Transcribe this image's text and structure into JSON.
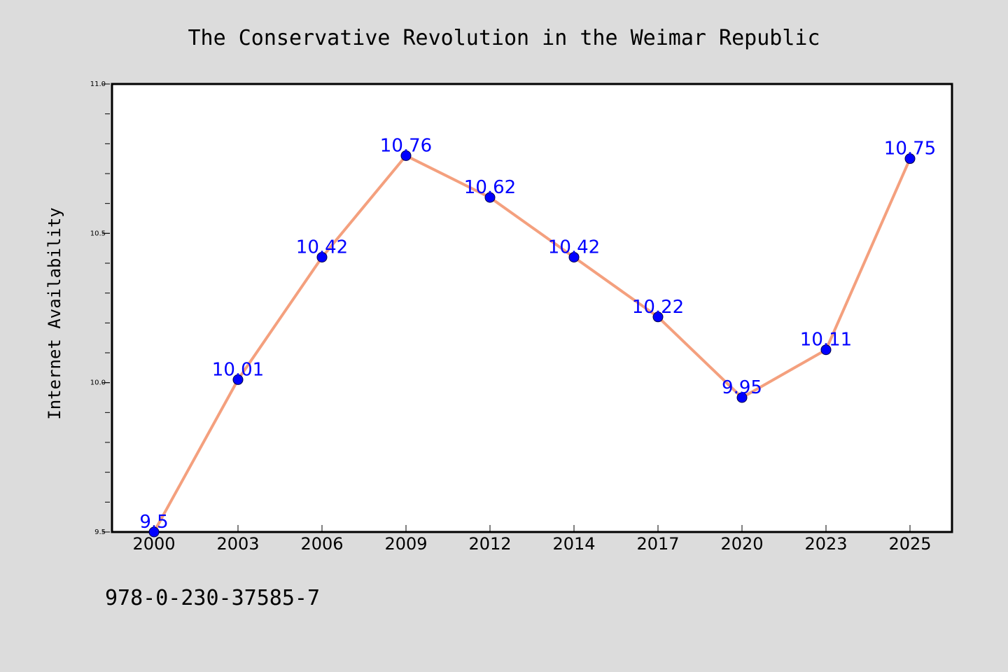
{
  "chart_data": {
    "type": "line",
    "title": "The Conservative Revolution in the Weimar Republic",
    "xlabel": "",
    "ylabel": "Internet Availability",
    "categories": [
      "2000",
      "2003",
      "2006",
      "2009",
      "2012",
      "2014",
      "2017",
      "2020",
      "2023",
      "2025"
    ],
    "series": [
      {
        "values": [
          9.5,
          10.01,
          10.42,
          10.76,
          10.62,
          10.42,
          10.22,
          9.95,
          10.11,
          10.75
        ],
        "labels": [
          "9.5",
          "10.01",
          "10.42",
          "10.76",
          "10.62",
          "10.42",
          "10.22",
          "9.95",
          "10.11",
          "10.75"
        ]
      }
    ],
    "ylim": [
      9.5,
      11.0
    ],
    "yticks": [
      "9.5",
      "10.0",
      "10.5",
      "11.0"
    ],
    "grid": false,
    "line_color": "#f4a07e",
    "marker_color": "#0000ff",
    "label_color": "#0000ff"
  },
  "footer": {
    "isbn": "978-0-230-37585-7"
  },
  "colors": {
    "background": "#dcdcdc",
    "plot_area": "#ffffff"
  }
}
